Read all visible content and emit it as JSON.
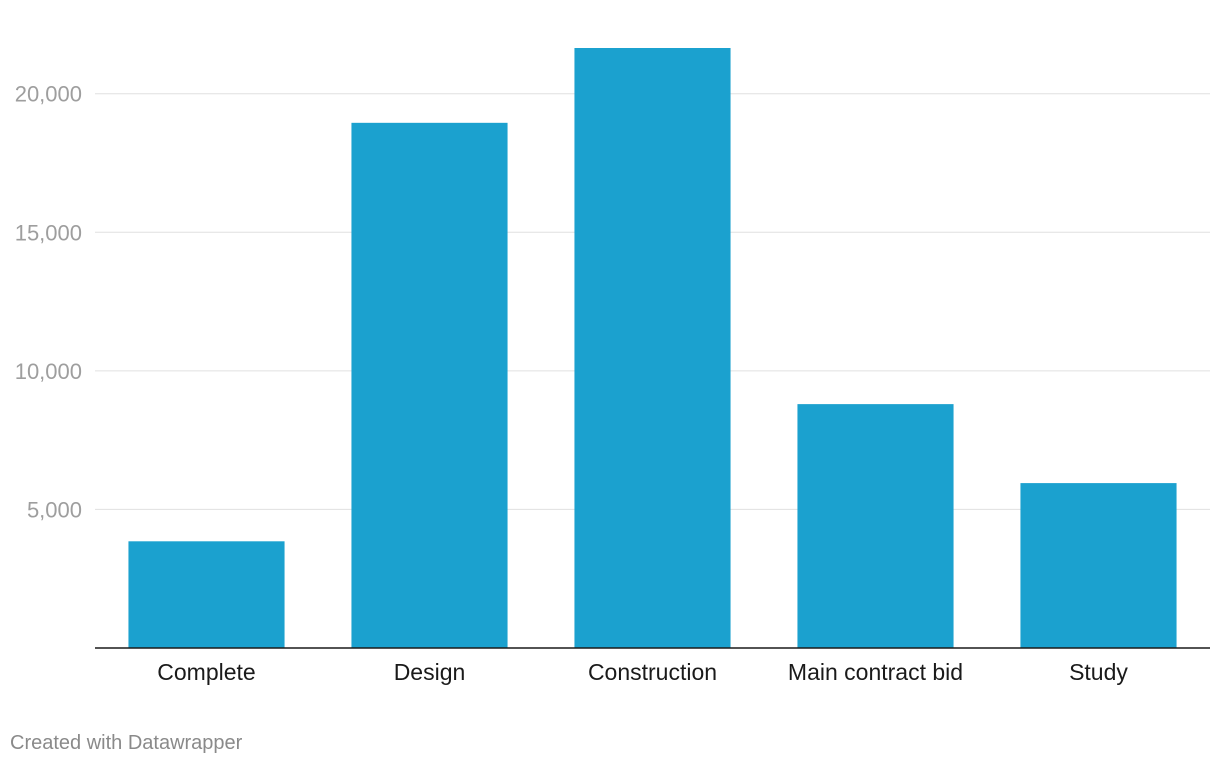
{
  "chart_data": {
    "type": "bar",
    "categories": [
      "Complete",
      "Design",
      "Construction",
      "Main contract bid",
      "Study"
    ],
    "values": [
      3850,
      18950,
      21650,
      8800,
      5950
    ],
    "title": "",
    "xlabel": "",
    "ylabel": "",
    "ylim": [
      0,
      21650
    ],
    "y_ticks": [
      5000,
      10000,
      15000,
      20000
    ],
    "y_tick_labels": [
      "5,000",
      "10,000",
      "15,000",
      "20,000"
    ],
    "grid": true,
    "bar_color": "#1ba1cf"
  },
  "footer": {
    "credit": "Created with Datawrapper"
  }
}
